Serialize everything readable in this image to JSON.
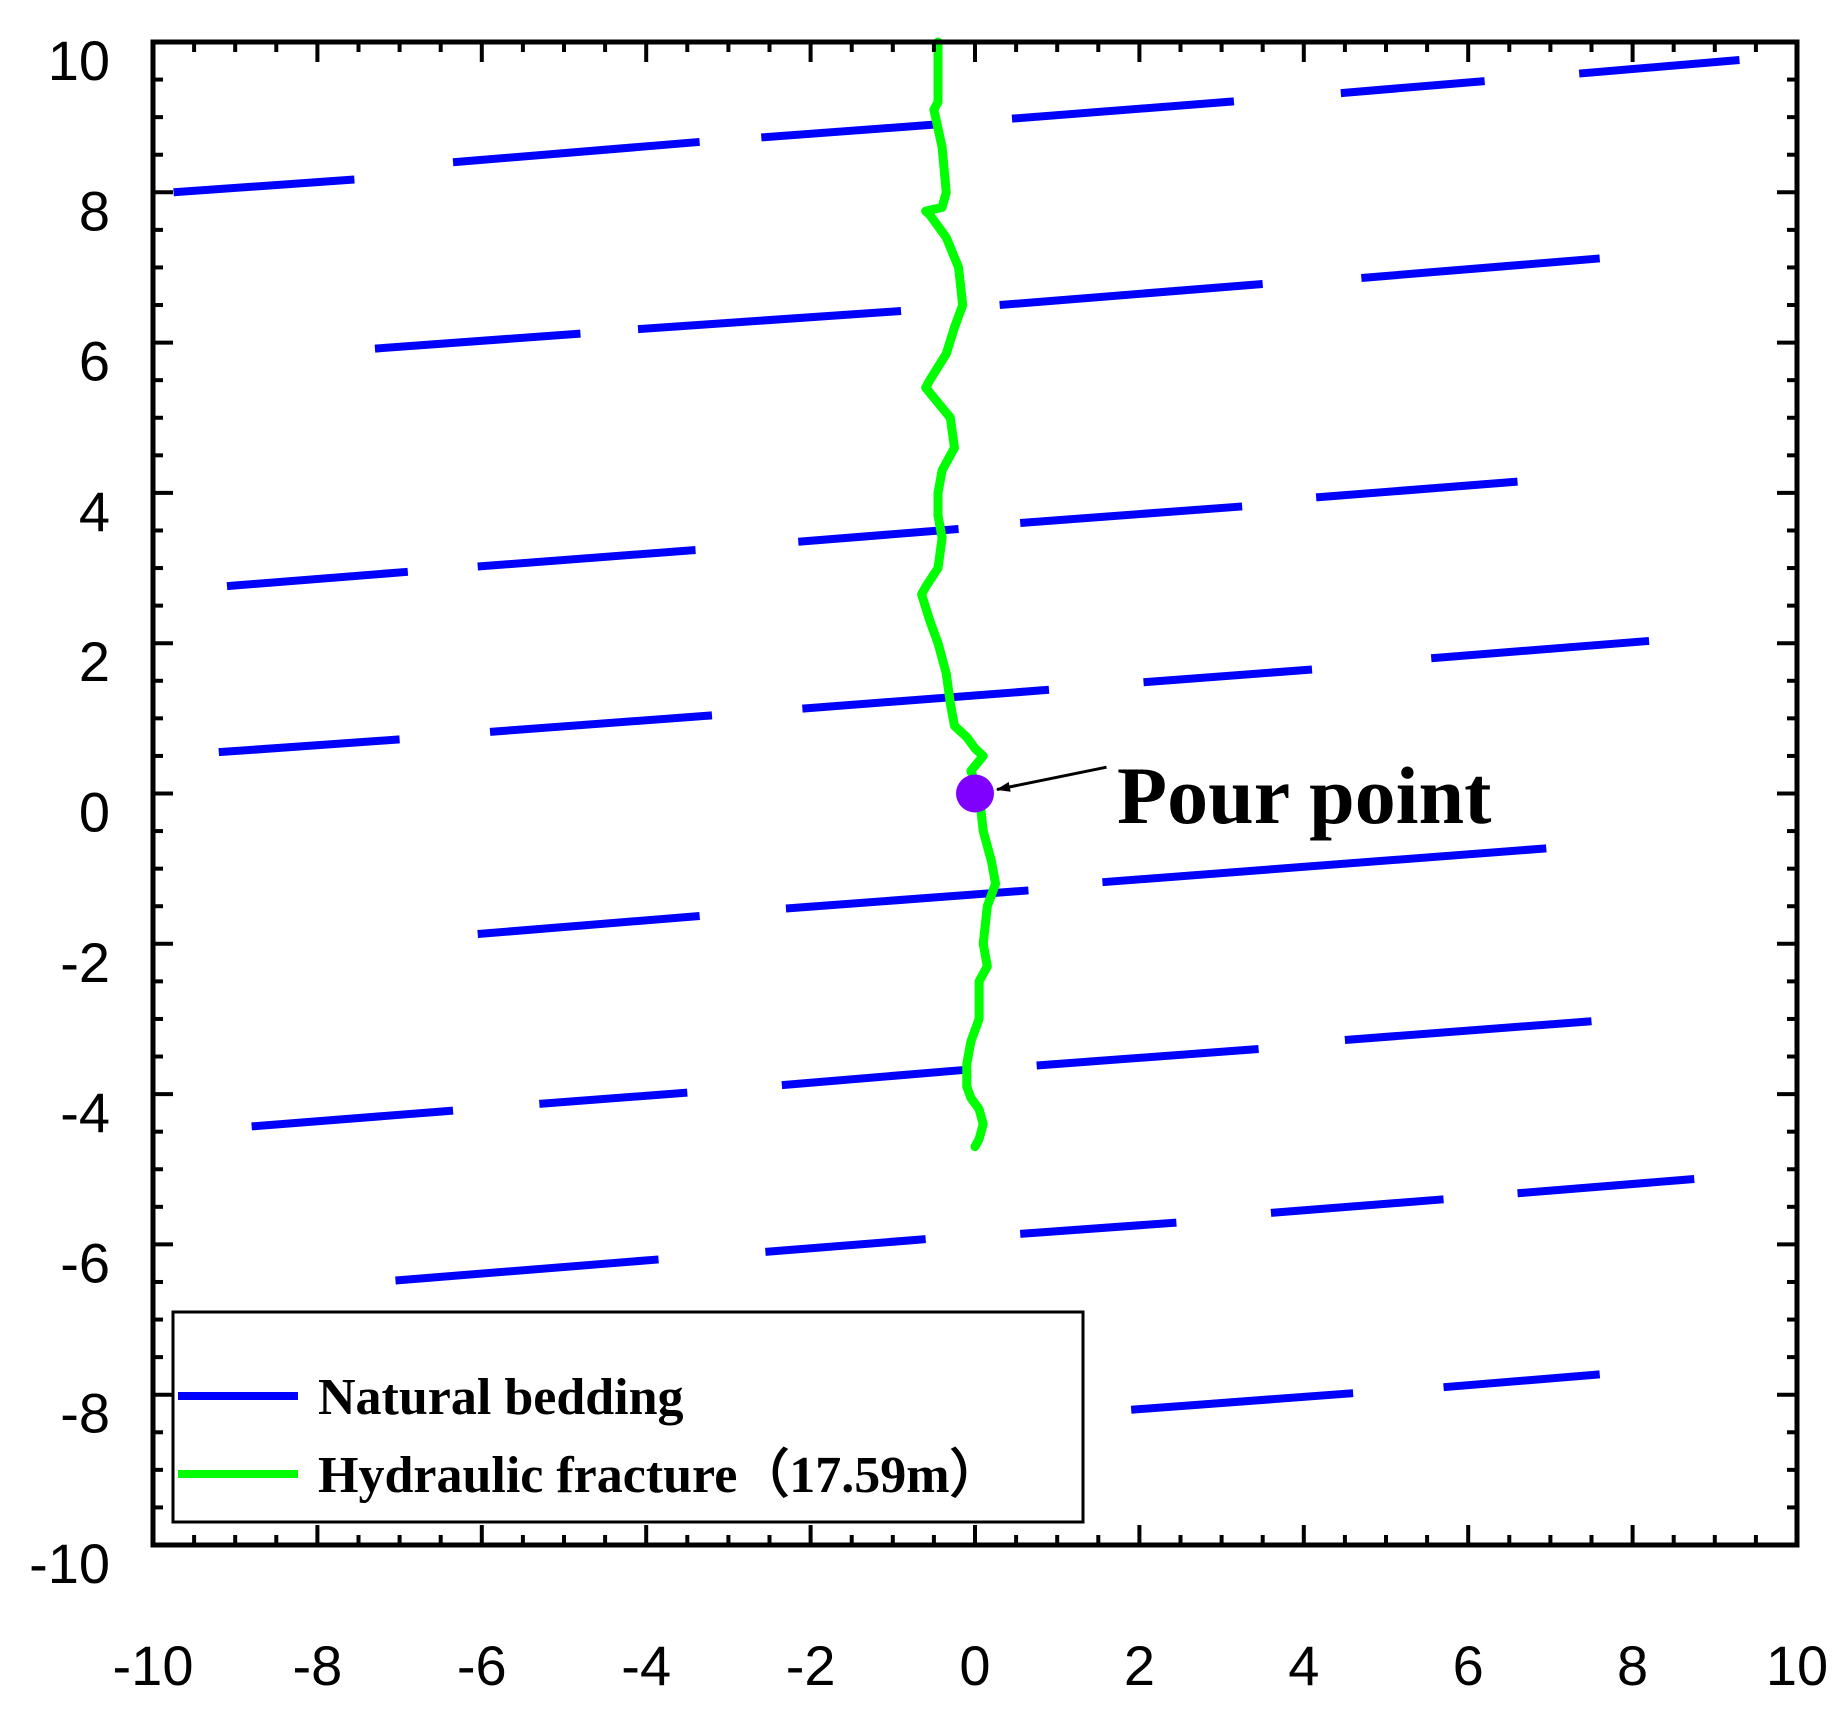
{
  "chart_data": {
    "type": "line",
    "title": "",
    "xlabel": "",
    "ylabel": "",
    "xlim": [
      -10,
      10
    ],
    "ylim": [
      -10,
      10
    ],
    "x_ticks": [
      -10,
      -8,
      -6,
      -4,
      -2,
      0,
      2,
      4,
      6,
      8,
      10
    ],
    "y_ticks": [
      -10,
      -8,
      -6,
      -4,
      -2,
      0,
      2,
      4,
      6,
      8,
      10
    ],
    "x_tick_labels": [
      "-10",
      "-8",
      "-6",
      "-4",
      "-2",
      "0",
      "2",
      "4",
      "6",
      "8",
      "10"
    ],
    "y_tick_labels": [
      "-10",
      "-8",
      "-6",
      "-4",
      "-2",
      "0",
      "2",
      "4",
      "6",
      "8",
      "10"
    ],
    "grid": false,
    "legend_position": "bottom-left",
    "colors": {
      "bedding": "#0000ff",
      "fracture": "#00ff00",
      "pour_point": "#8000ff",
      "axis": "#000000"
    },
    "series": [
      {
        "name": "Natural bedding",
        "color": "#0000ff",
        "segments": [
          [
            [
              -9.75,
              8.0
            ],
            [
              -7.55,
              8.17
            ]
          ],
          [
            [
              -6.35,
              8.4
            ],
            [
              -3.35,
              8.67
            ]
          ],
          [
            [
              -2.6,
              8.73
            ],
            [
              -0.5,
              8.9
            ]
          ],
          [
            [
              0.45,
              8.98
            ],
            [
              3.15,
              9.21
            ]
          ],
          [
            [
              4.45,
              9.32
            ],
            [
              6.2,
              9.48
            ]
          ],
          [
            [
              7.35,
              9.58
            ],
            [
              9.3,
              9.76
            ]
          ],
          [
            [
              -7.3,
              5.92
            ],
            [
              -4.8,
              6.12
            ]
          ],
          [
            [
              -4.1,
              6.18
            ],
            [
              -0.9,
              6.42
            ]
          ],
          [
            [
              0.3,
              6.5
            ],
            [
              3.5,
              6.78
            ]
          ],
          [
            [
              4.7,
              6.86
            ],
            [
              7.6,
              7.12
            ]
          ],
          [
            [
              -9.1,
              2.76
            ],
            [
              -6.9,
              2.95
            ]
          ],
          [
            [
              -6.05,
              3.02
            ],
            [
              -3.4,
              3.24
            ]
          ],
          [
            [
              -2.15,
              3.35
            ],
            [
              -0.2,
              3.52
            ]
          ],
          [
            [
              0.55,
              3.6
            ],
            [
              3.25,
              3.82
            ]
          ],
          [
            [
              4.15,
              3.94
            ],
            [
              6.6,
              4.15
            ]
          ],
          [
            [
              -9.2,
              0.55
            ],
            [
              -7.0,
              0.72
            ]
          ],
          [
            [
              -5.9,
              0.82
            ],
            [
              -3.2,
              1.04
            ]
          ],
          [
            [
              -2.1,
              1.13
            ],
            [
              0.9,
              1.38
            ]
          ],
          [
            [
              2.05,
              1.48
            ],
            [
              4.1,
              1.65
            ]
          ],
          [
            [
              5.55,
              1.8
            ],
            [
              8.2,
              2.03
            ]
          ],
          [
            [
              -6.05,
              -1.87
            ],
            [
              -3.35,
              -1.63
            ]
          ],
          [
            [
              -2.3,
              -1.53
            ],
            [
              0.65,
              -1.29
            ]
          ],
          [
            [
              1.55,
              -1.18
            ],
            [
              6.95,
              -0.73
            ]
          ],
          [
            [
              -8.8,
              -4.43
            ],
            [
              -6.35,
              -4.22
            ]
          ],
          [
            [
              -5.3,
              -4.13
            ],
            [
              -3.5,
              -3.98
            ]
          ],
          [
            [
              -2.35,
              -3.88
            ],
            [
              -0.15,
              -3.68
            ]
          ],
          [
            [
              0.75,
              -3.62
            ],
            [
              3.45,
              -3.4
            ]
          ],
          [
            [
              4.5,
              -3.28
            ],
            [
              7.5,
              -3.03
            ]
          ],
          [
            [
              -7.05,
              -6.48
            ],
            [
              -3.85,
              -6.2
            ]
          ],
          [
            [
              -2.55,
              -6.1
            ],
            [
              -0.6,
              -5.93
            ]
          ],
          [
            [
              0.55,
              -5.86
            ],
            [
              2.45,
              -5.71
            ]
          ],
          [
            [
              3.6,
              -5.58
            ],
            [
              5.7,
              -5.4
            ]
          ],
          [
            [
              6.6,
              -5.32
            ],
            [
              8.75,
              -5.13
            ]
          ],
          [
            [
              1.9,
              -8.2
            ],
            [
              4.6,
              -7.98
            ]
          ],
          [
            [
              5.7,
              -7.9
            ],
            [
              7.6,
              -7.73
            ]
          ]
        ]
      },
      {
        "name": "Hydraulic fracture（17.59m）",
        "color": "#00ff00",
        "points": [
          [
            -0.45,
            10.0
          ],
          [
            -0.45,
            9.2
          ],
          [
            -0.5,
            9.1
          ],
          [
            -0.4,
            8.6
          ],
          [
            -0.35,
            8.0
          ],
          [
            -0.4,
            7.8
          ],
          [
            -0.6,
            7.75
          ],
          [
            -0.55,
            7.7
          ],
          [
            -0.35,
            7.4
          ],
          [
            -0.2,
            7.0
          ],
          [
            -0.15,
            6.5
          ],
          [
            -0.25,
            6.2
          ],
          [
            -0.35,
            5.85
          ],
          [
            -0.55,
            5.5
          ],
          [
            -0.6,
            5.4
          ],
          [
            -0.45,
            5.2
          ],
          [
            -0.3,
            5.0
          ],
          [
            -0.25,
            4.6
          ],
          [
            -0.4,
            4.3
          ],
          [
            -0.45,
            4.0
          ],
          [
            -0.45,
            3.7
          ],
          [
            -0.4,
            3.4
          ],
          [
            -0.45,
            3.0
          ],
          [
            -0.6,
            2.75
          ],
          [
            -0.65,
            2.65
          ],
          [
            -0.55,
            2.3
          ],
          [
            -0.45,
            2.0
          ],
          [
            -0.35,
            1.6
          ],
          [
            -0.3,
            1.2
          ],
          [
            -0.25,
            0.9
          ],
          [
            -0.1,
            0.75
          ],
          [
            0.0,
            0.6
          ],
          [
            0.1,
            0.5
          ],
          [
            -0.05,
            0.3
          ],
          [
            0.05,
            0.0
          ],
          [
            0.1,
            -0.5
          ],
          [
            0.2,
            -0.9
          ],
          [
            0.25,
            -1.2
          ],
          [
            0.15,
            -1.5
          ],
          [
            0.1,
            -2.0
          ],
          [
            0.15,
            -2.3
          ],
          [
            0.05,
            -2.5
          ],
          [
            0.05,
            -3.0
          ],
          [
            -0.05,
            -3.3
          ],
          [
            -0.1,
            -3.6
          ],
          [
            -0.1,
            -3.9
          ],
          [
            -0.05,
            -4.05
          ],
          [
            0.05,
            -4.2
          ],
          [
            0.1,
            -4.4
          ],
          [
            0.05,
            -4.6
          ],
          [
            0.0,
            -4.7
          ]
        ]
      }
    ],
    "annotations": [
      {
        "text": "Pour point",
        "x": 0.0,
        "y": 0.0,
        "arrow_tail": [
          1.6,
          0.35
        ]
      }
    ]
  }
}
